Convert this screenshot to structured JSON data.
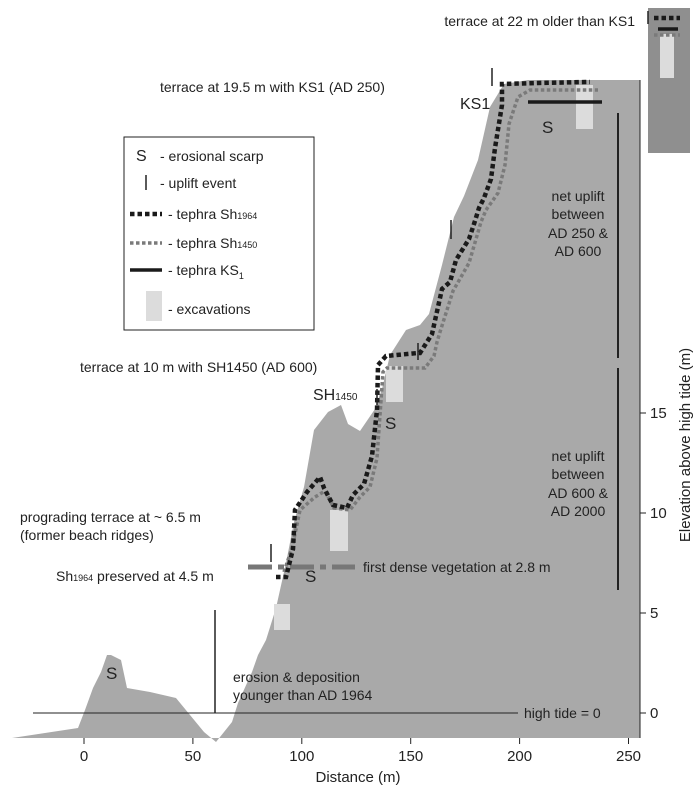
{
  "colors": {
    "ground": "#a9a9a9",
    "dark_box": "#8f8f8f",
    "tephra_sh1964": "#1a1a1a",
    "tephra_sh1450": "#7a7a7a",
    "tephra_ks1": "#1a1a1a",
    "excavation": "#dcdcdc",
    "vegetation_line": "#777777",
    "text": "#222222"
  },
  "axes": {
    "x_label": "Distance (m)",
    "y_label": "Elevation above high tide (m)",
    "x_ticks": [
      "0",
      "50",
      "100",
      "150",
      "200",
      "250"
    ],
    "y_ticks": [
      "0",
      "5",
      "10",
      "15"
    ],
    "x_values": [
      0,
      50,
      100,
      150,
      200,
      250
    ],
    "y_values": [
      0,
      5,
      10,
      15
    ]
  },
  "legend": {
    "items": [
      {
        "symbol": "S",
        "text": "- erosional scarp"
      },
      {
        "symbol": "|",
        "text": "- uplift event"
      },
      {
        "symbol": "line-dotted-black",
        "text": "- tephra Sh",
        "sub": "1964"
      },
      {
        "symbol": "line-dotted-grey",
        "text": "- tephra Sh",
        "sub": "1450"
      },
      {
        "symbol": "line-solid-black",
        "text": "- tephra KS",
        "sub": "1"
      },
      {
        "symbol": "box-light",
        "text": "- excavations"
      }
    ]
  },
  "annotations": {
    "terrace_22": "terrace at 22 m older than KS1",
    "terrace_19_5": "terrace at 19.5 m with KS1 (AD 250)",
    "ks1": "KS1",
    "terrace_10": "terrace at 10  m with SH1450 (AD 600)",
    "sh1450_main": "SH",
    "sh1450_sub": "1450",
    "prograding_1": "prograding terrace at ~ 6.5 m",
    "prograding_2": "(former beach ridges)",
    "sh1964_main": "Sh",
    "sh1964_sub": "1964",
    "sh1964_rest": " preserved at 4.5 m",
    "vegetation": "first dense vegetation at 2.8 m",
    "erosion_1": "erosion & deposition",
    "erosion_2": "younger than AD 1964",
    "high_tide": "high tide = 0",
    "uplift_upper_1": "net uplift",
    "uplift_upper_2": "between",
    "uplift_upper_3": "AD 250 &",
    "uplift_upper_4": "AD 600",
    "uplift_lower_1": "net uplift",
    "uplift_lower_2": "between",
    "uplift_lower_3": "AD 600 &",
    "uplift_lower_4": "AD 2000",
    "scarp": "S"
  }
}
